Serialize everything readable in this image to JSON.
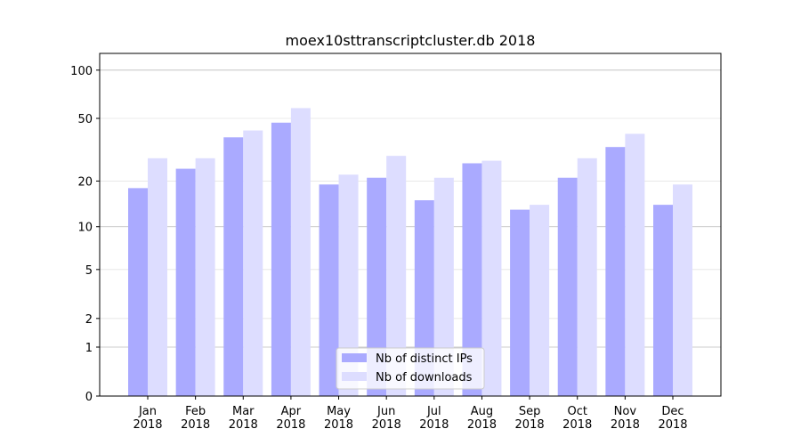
{
  "chart_data": {
    "type": "bar",
    "title": "moex10sttranscriptcluster.db 2018",
    "categories": [
      "Jan\n2018",
      "Feb\n2018",
      "Mar\n2018",
      "Apr\n2018",
      "May\n2018",
      "Jun\n2018",
      "Jul\n2018",
      "Aug\n2018",
      "Sep\n2018",
      "Oct\n2018",
      "Nov\n2018",
      "Dec\n2018"
    ],
    "series": [
      {
        "name": "Nb of distinct IPs",
        "color": "#aaaaff",
        "values": [
          18,
          24,
          38,
          47,
          19,
          21,
          15,
          26,
          13,
          21,
          33,
          14
        ]
      },
      {
        "name": "Nb of downloads",
        "color": "#ddddff",
        "values": [
          28,
          28,
          42,
          58,
          22,
          29,
          21,
          27,
          14,
          28,
          40,
          19
        ]
      }
    ],
    "yscale": "log1p",
    "ylim": [
      0,
      127
    ],
    "yticks": [
      0,
      1,
      2,
      5,
      10,
      20,
      50,
      100
    ],
    "grid": true,
    "legend": "lower center"
  }
}
